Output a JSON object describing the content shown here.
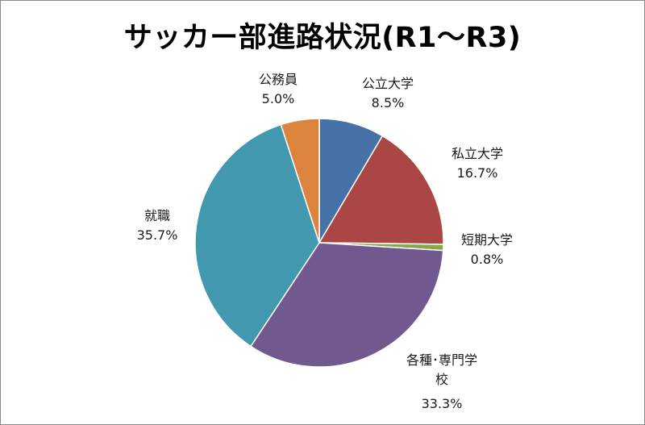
{
  "chart_data": {
    "type": "pie",
    "title": "サッカー部進路状況(R1～R3)",
    "slices": [
      {
        "label": "公立大学",
        "label_lines": [
          "公立大学"
        ],
        "value": 8.5,
        "display": "8.5%",
        "color": "#4672a8"
      },
      {
        "label": "私立大学",
        "label_lines": [
          "私立大学"
        ],
        "value": 16.7,
        "display": "16.7%",
        "color": "#aa4644"
      },
      {
        "label": "短期大学",
        "label_lines": [
          "短期大学"
        ],
        "value": 0.8,
        "display": "0.8%",
        "color": "#89a54e"
      },
      {
        "label": "各種・専門学校",
        "label_lines": [
          "各種･専門学",
          "校"
        ],
        "value": 33.3,
        "display": "33.3%",
        "color": "#71588f"
      },
      {
        "label": "就職",
        "label_lines": [
          "就職"
        ],
        "value": 35.7,
        "display": "35.7%",
        "color": "#4198af"
      },
      {
        "label": "公務員",
        "label_lines": [
          "公務員"
        ],
        "value": 5.0,
        "display": "5.0%",
        "color": "#db843d"
      }
    ],
    "start_angle": "12 o'clock",
    "direction": "clockwise",
    "legend": "none"
  }
}
